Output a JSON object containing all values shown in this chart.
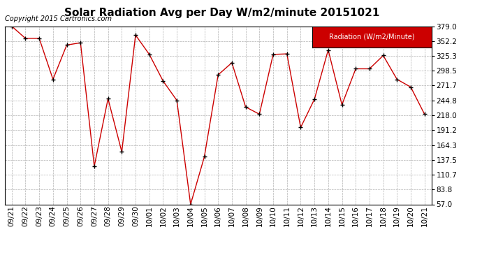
{
  "title": "Solar Radiation Avg per Day W/m2/minute 20151021",
  "copyright_text": "Copyright 2015 Cartronics.com",
  "legend_label": "Radiation (W/m2/Minute)",
  "dates": [
    "09/21",
    "09/22",
    "09/23",
    "09/24",
    "09/25",
    "09/26",
    "09/27",
    "09/28",
    "09/29",
    "09/30",
    "10/01",
    "10/02",
    "10/03",
    "10/04",
    "10/05",
    "10/06",
    "10/07",
    "10/08",
    "10/09",
    "10/10",
    "10/11",
    "10/12",
    "10/13",
    "10/14",
    "10/15",
    "10/16",
    "10/17",
    "10/18",
    "10/19",
    "10/20",
    "10/21"
  ],
  "values": [
    379.0,
    357.0,
    357.0,
    283.0,
    345.0,
    349.0,
    126.0,
    248.0,
    152.0,
    363.0,
    328.0,
    280.0,
    245.0,
    57.0,
    143.0,
    291.0,
    313.0,
    233.0,
    220.0,
    328.0,
    329.0,
    196.0,
    247.0,
    336.0,
    237.0,
    302.0,
    302.0,
    326.0,
    283.0,
    269.0,
    220.0
  ],
  "yticks": [
    57.0,
    83.8,
    110.7,
    137.5,
    164.3,
    191.2,
    218.0,
    244.8,
    271.7,
    298.5,
    325.3,
    352.2,
    379.0
  ],
  "ymin": 57.0,
  "ymax": 379.0,
  "line_color": "#cc0000",
  "marker_color": "#000000",
  "background_color": "#ffffff",
  "grid_color": "#b0b0b0",
  "legend_bg": "#cc0000",
  "legend_text_color": "#ffffff",
  "title_fontsize": 11,
  "axis_fontsize": 7.5,
  "copyright_fontsize": 7
}
